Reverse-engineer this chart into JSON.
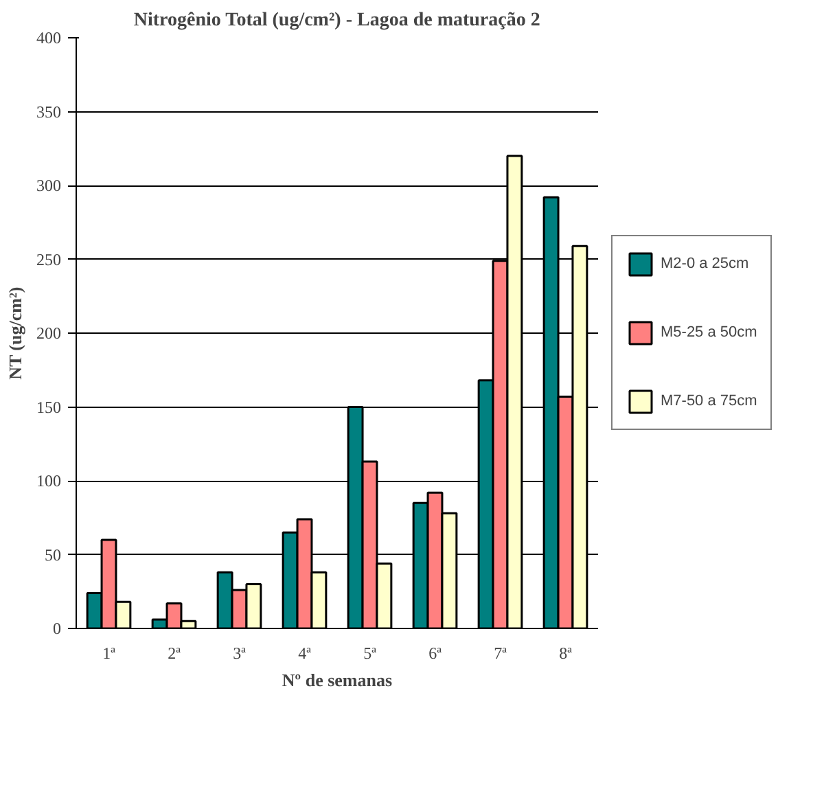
{
  "chart_data": {
    "type": "bar",
    "title": "Nitrogênio Total (ug/cm²) - Lagoa de maturação 2",
    "xlabel": "Nº de semanas",
    "ylabel": "NT (ug/cm²)",
    "categories": [
      "1ª",
      "2ª",
      "3ª",
      "4ª",
      "5ª",
      "6ª",
      "7ª",
      "8ª"
    ],
    "series": [
      {
        "name": "M2-0 a 25cm",
        "color": "#008080",
        "values": [
          24,
          6,
          38,
          65,
          150,
          85,
          168,
          292
        ]
      },
      {
        "name": "M5-25 a 50cm",
        "color": "#ff8080",
        "values": [
          60,
          17,
          26,
          74,
          113,
          92,
          249,
          157
        ]
      },
      {
        "name": "M7-50 a 75cm",
        "color": "#ffffcc",
        "values": [
          18,
          5,
          30,
          38,
          44,
          78,
          320,
          259
        ]
      }
    ],
    "ylim": [
      0,
      400
    ],
    "yticks": [
      0,
      50,
      100,
      150,
      200,
      250,
      300,
      350,
      400
    ],
    "grid": "y",
    "legend": "right"
  }
}
